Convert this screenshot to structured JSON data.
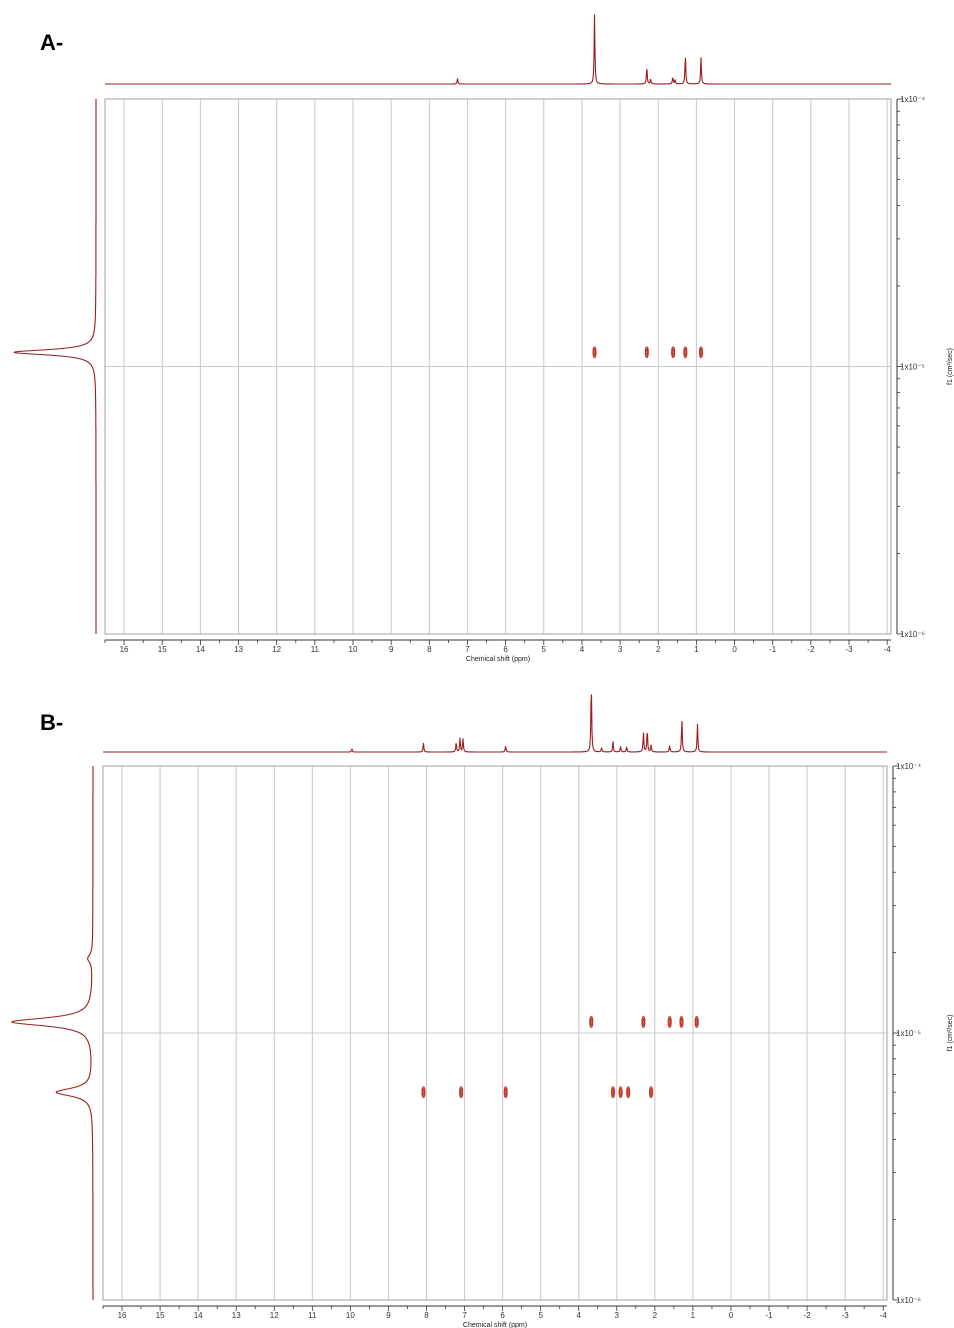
{
  "chart_data": [
    {
      "type": "scatter",
      "panel_label": "A-",
      "xlabel": "Chemical shift (ppm)",
      "ylabel": "f1 (cm²/sec)",
      "xlim": [
        16.5,
        -4.1
      ],
      "ylim": [
        1e-06,
        0.0001
      ],
      "y_scale": "log",
      "x_ticks": [
        "16",
        "15",
        "14",
        "13",
        "12",
        "11",
        "10",
        "9",
        "8",
        "7",
        "6",
        "5",
        "4",
        "3",
        "2",
        "1",
        "0",
        "-1",
        "-2",
        "-3",
        "-4"
      ],
      "y_ticks": [
        "1x10⁻⁴",
        "1x10⁻⁵",
        "1x10⁻⁶"
      ],
      "grid": true,
      "dosy_peaks": [
        {
          "shift": 3.67,
          "D": 1.13e-05
        },
        {
          "shift": 2.3,
          "D": 1.13e-05
        },
        {
          "shift": 1.61,
          "D": 1.13e-05
        },
        {
          "shift": 1.29,
          "D": 1.13e-05
        },
        {
          "shift": 0.88,
          "D": 1.13e-05
        }
      ],
      "proton_spectrum": [
        {
          "shift": 7.26,
          "intensity": 0.08
        },
        {
          "shift": 3.67,
          "intensity": 1.0
        },
        {
          "shift": 2.3,
          "intensity": 0.25
        },
        {
          "shift": 2.2,
          "intensity": 0.07
        },
        {
          "shift": 1.62,
          "intensity": 0.1
        },
        {
          "shift": 1.56,
          "intensity": 0.06
        },
        {
          "shift": 1.29,
          "intensity": 0.42
        },
        {
          "shift": 0.88,
          "intensity": 0.38
        }
      ],
      "diffusion_projection": [
        {
          "D": 1.13e-05,
          "intensity": 1.0
        }
      ]
    },
    {
      "type": "scatter",
      "panel_label": "B-",
      "xlabel": "Chemical shift (ppm)",
      "ylabel": "f1 (cm²/sec)",
      "xlim": [
        16.5,
        -4.1
      ],
      "ylim": [
        1e-06,
        0.0001
      ],
      "y_scale": "log",
      "x_ticks": [
        "16",
        "15",
        "14",
        "13",
        "12",
        "11",
        "10",
        "9",
        "8",
        "7",
        "6",
        "5",
        "4",
        "3",
        "2",
        "1",
        "0",
        "-1",
        "-2",
        "-3",
        "-4"
      ],
      "y_ticks": [
        "1x10⁻⁴",
        "1x10⁻⁵",
        "1x10⁻⁶"
      ],
      "grid": true,
      "dosy_peaks": [
        {
          "shift": 3.67,
          "D": 1.1e-05
        },
        {
          "shift": 2.3,
          "D": 1.1e-05
        },
        {
          "shift": 1.61,
          "D": 1.1e-05
        },
        {
          "shift": 1.3,
          "D": 1.1e-05
        },
        {
          "shift": 0.9,
          "D": 1.1e-05
        },
        {
          "shift": 8.08,
          "D": 6e-06
        },
        {
          "shift": 7.09,
          "D": 6e-06
        },
        {
          "shift": 5.92,
          "D": 6e-06
        },
        {
          "shift": 3.1,
          "D": 6e-06
        },
        {
          "shift": 2.9,
          "D": 6e-06
        },
        {
          "shift": 2.7,
          "D": 6e-06
        },
        {
          "shift": 2.1,
          "D": 6e-06
        }
      ],
      "proton_spectrum": [
        {
          "shift": 9.96,
          "intensity": 0.04
        },
        {
          "shift": 8.08,
          "intensity": 0.13
        },
        {
          "shift": 7.22,
          "intensity": 0.14
        },
        {
          "shift": 7.12,
          "intensity": 0.2
        },
        {
          "shift": 7.04,
          "intensity": 0.19
        },
        {
          "shift": 5.92,
          "intensity": 0.09
        },
        {
          "shift": 3.67,
          "intensity": 1.0
        },
        {
          "shift": 3.4,
          "intensity": 0.06
        },
        {
          "shift": 3.1,
          "intensity": 0.15
        },
        {
          "shift": 2.9,
          "intensity": 0.08
        },
        {
          "shift": 2.74,
          "intensity": 0.07
        },
        {
          "shift": 2.3,
          "intensity": 0.28
        },
        {
          "shift": 2.2,
          "intensity": 0.33
        },
        {
          "shift": 2.1,
          "intensity": 0.1
        },
        {
          "shift": 1.61,
          "intensity": 0.09
        },
        {
          "shift": 1.29,
          "intensity": 0.48
        },
        {
          "shift": 0.88,
          "intensity": 0.4
        }
      ],
      "diffusion_projection": [
        {
          "D": 1.1e-05,
          "intensity": 1.0
        },
        {
          "D": 6e-06,
          "intensity": 0.45
        },
        {
          "D": 1.9e-05,
          "intensity": 0.06
        }
      ]
    }
  ]
}
